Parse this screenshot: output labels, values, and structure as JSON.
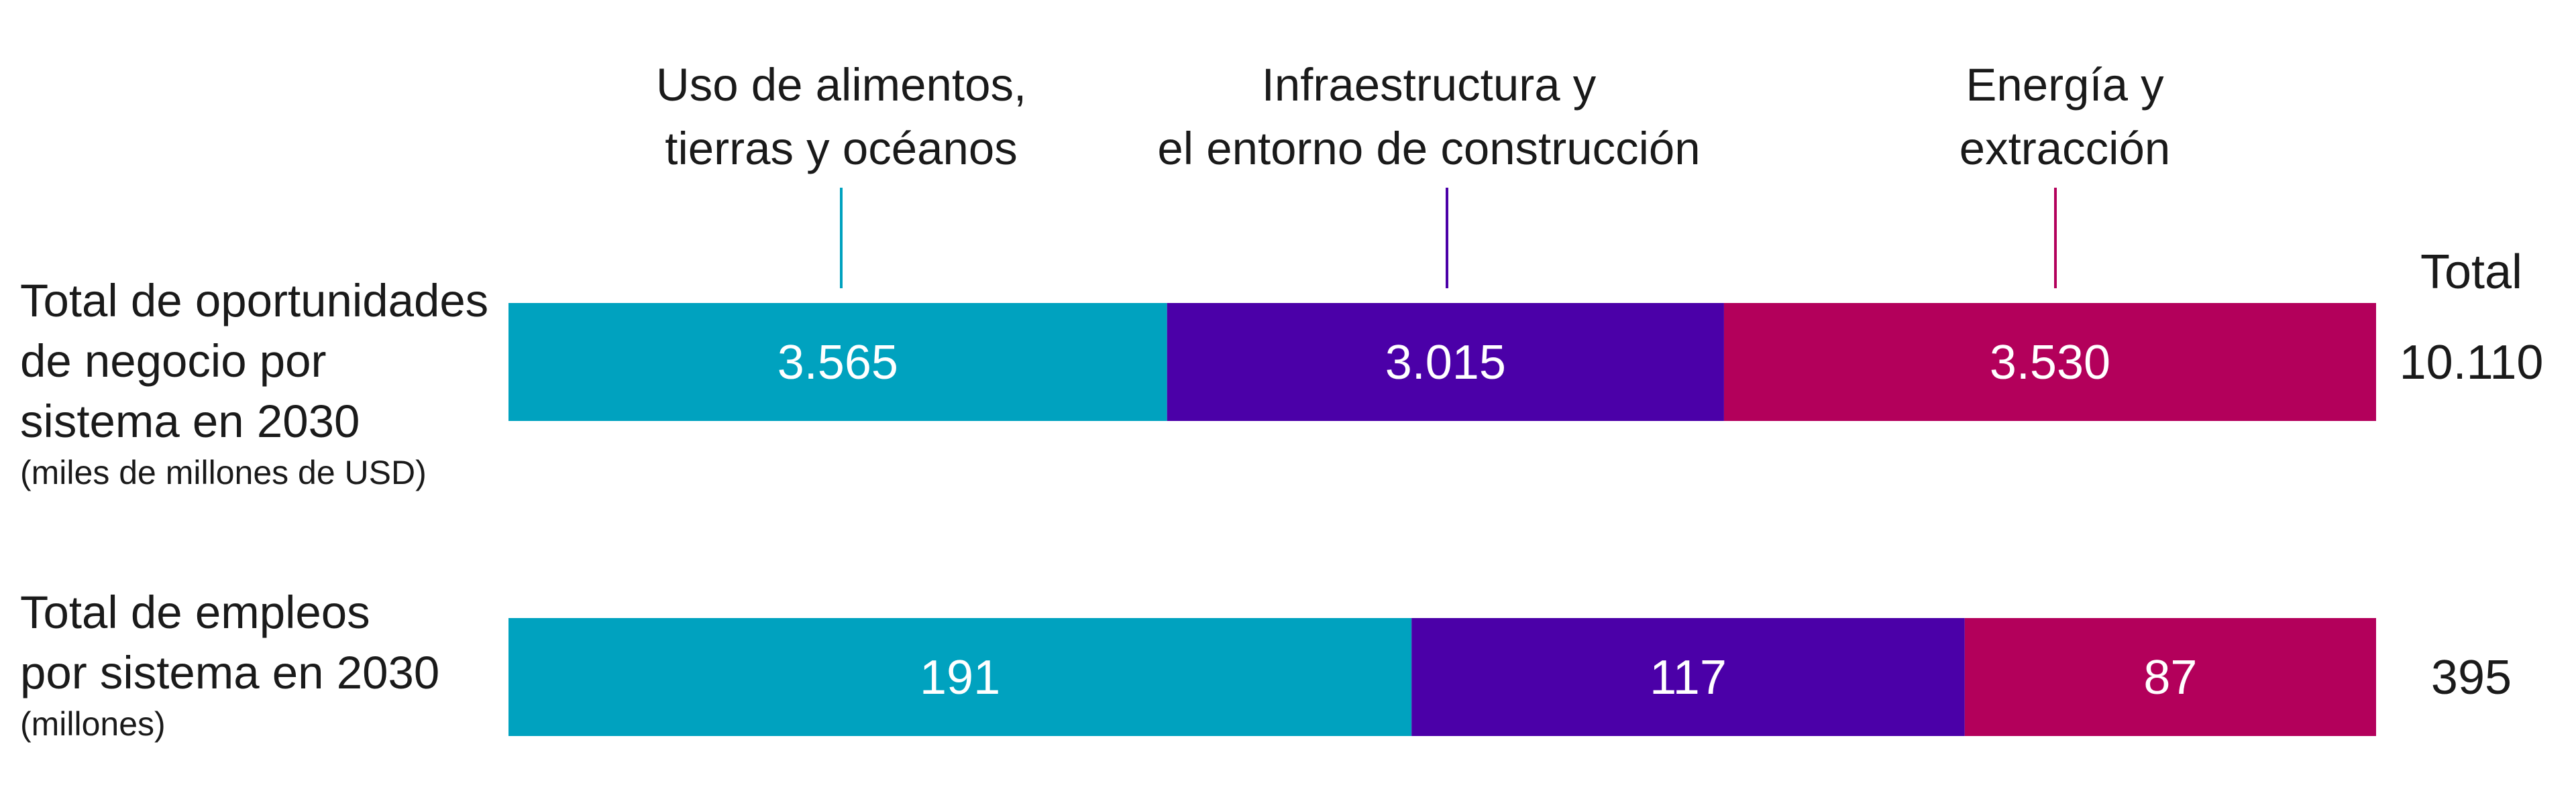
{
  "chart_data": {
    "type": "bar",
    "orientation": "horizontal",
    "stacked": true,
    "categories": [
      [
        "Uso de alimentos,",
        "tierras y océanos"
      ],
      [
        "Infraestructura y",
        "el entorno de construcción"
      ],
      [
        "Energía y",
        "extracción"
      ]
    ],
    "colors": [
      "#00a2bf",
      "#4b00a8",
      "#b3005b"
    ],
    "total_header": "Total",
    "rows": [
      {
        "title": [
          "Total de oportunidades",
          "de negocio por",
          "sistema en 2030"
        ],
        "subtitle": "(miles de millones de USD)",
        "values": [
          3565,
          3015,
          3530
        ],
        "value_labels": [
          "3.565",
          "3.015",
          "3.530"
        ],
        "total": 10110,
        "total_label": "10.110"
      },
      {
        "title": [
          "Total de empleos",
          "por sistema en 2030"
        ],
        "subtitle": "(millones)",
        "values": [
          191,
          117,
          87
        ],
        "value_labels": [
          "191",
          "117",
          "87"
        ],
        "total": 395,
        "total_label": "395"
      }
    ]
  }
}
